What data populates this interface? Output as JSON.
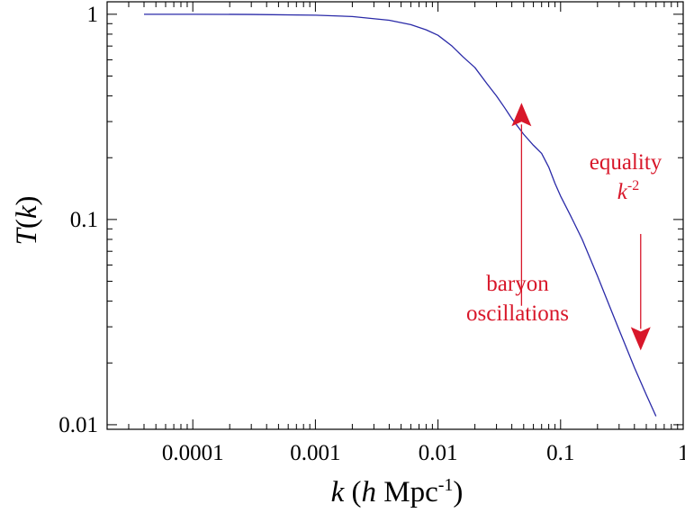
{
  "chart_data": {
    "type": "line",
    "x_scale": "log",
    "y_scale": "log",
    "xlim": [
      2e-05,
      1
    ],
    "ylim": [
      0.0095,
      1.15
    ],
    "xlabel": {
      "var": "k",
      "open": " (",
      "h": "h",
      "unit": " Mpc",
      "exp": "-1",
      "close": ")"
    },
    "ylabel": {
      "var": "T",
      "open": "(",
      "arg": "k",
      "close": ")"
    },
    "xticks": [
      {
        "value": 0.0001,
        "label": "0.0001"
      },
      {
        "value": 0.001,
        "label": "0.001"
      },
      {
        "value": 0.01,
        "label": "0.01"
      },
      {
        "value": 0.1,
        "label": "0.1"
      },
      {
        "value": 1,
        "label": "1"
      }
    ],
    "yticks": [
      {
        "value": 0.01,
        "label": "0.01"
      },
      {
        "value": 0.1,
        "label": "0.1"
      },
      {
        "value": 1,
        "label": "1"
      }
    ],
    "grid": false,
    "series": [
      {
        "color": "#2a2aa8",
        "x": [
          4e-05,
          0.0001,
          0.0003,
          0.001,
          0.002,
          0.004,
          0.006,
          0.008,
          0.01,
          0.013,
          0.016,
          0.02,
          0.025,
          0.03,
          0.035,
          0.04,
          0.05,
          0.06,
          0.07,
          0.08,
          0.09,
          0.1,
          0.12,
          0.15,
          0.2,
          0.25,
          0.3,
          0.4,
          0.5,
          0.6
        ],
        "y": [
          1.0,
          1.0,
          0.998,
          0.99,
          0.975,
          0.935,
          0.89,
          0.84,
          0.79,
          0.7,
          0.62,
          0.55,
          0.46,
          0.4,
          0.35,
          0.31,
          0.26,
          0.23,
          0.21,
          0.18,
          0.15,
          0.13,
          0.105,
          0.08,
          0.053,
          0.038,
          0.029,
          0.019,
          0.014,
          0.011
        ]
      }
    ],
    "annotations": {
      "color": "#d8172a",
      "baryon": {
        "lines": [
          "baryon",
          "oscillations"
        ],
        "x": 0.048,
        "arrow_from_y": 0.038,
        "arrow_to_y": 0.37
      },
      "equality": {
        "line1": "equality",
        "k": "k",
        "exp": "-2",
        "x": 0.45,
        "arrow_from_y": 0.085,
        "arrow_to_y": 0.023
      }
    }
  }
}
